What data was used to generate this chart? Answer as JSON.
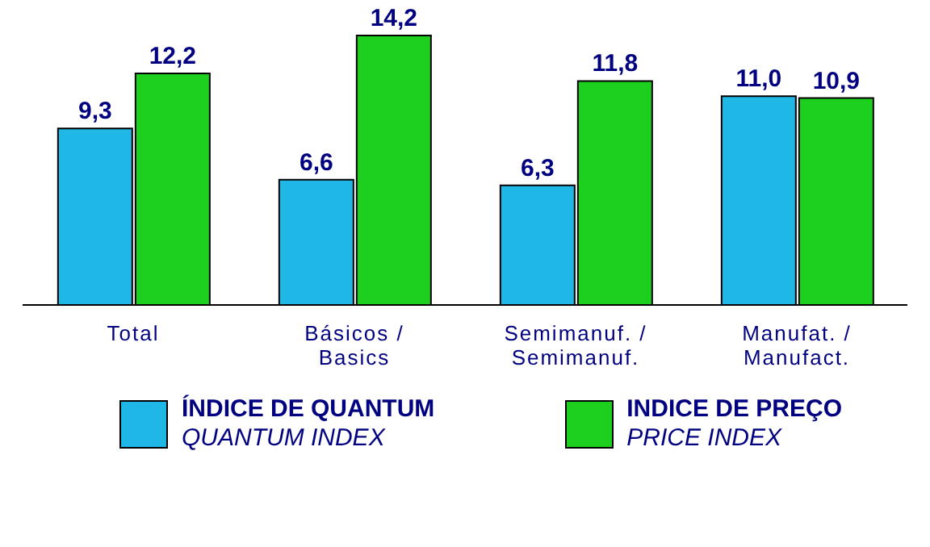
{
  "chart_data": {
    "type": "bar",
    "categories": [
      "Total",
      "Básicos /\nBasics",
      "Semimanuf. /\nSemimanuf.",
      "Manufat. /\nManufact."
    ],
    "series": [
      {
        "name": "ÍNDICE DE QUANTUM\nQUANTUM INDEX",
        "color": "#1fb8e6",
        "values": [
          9.3,
          6.6,
          6.3,
          11.0
        ],
        "value_labels": [
          "9,3",
          "6,6",
          "6,3",
          "11,0"
        ]
      },
      {
        "name": "INDICE DE PREÇO\nPRICE INDEX",
        "color": "#1ed01e",
        "values": [
          12.2,
          14.2,
          11.8,
          10.9
        ],
        "value_labels": [
          "12,2",
          "14,2",
          "11,8",
          "10,9"
        ]
      }
    ],
    "legend": "bottom",
    "grid": false
  }
}
